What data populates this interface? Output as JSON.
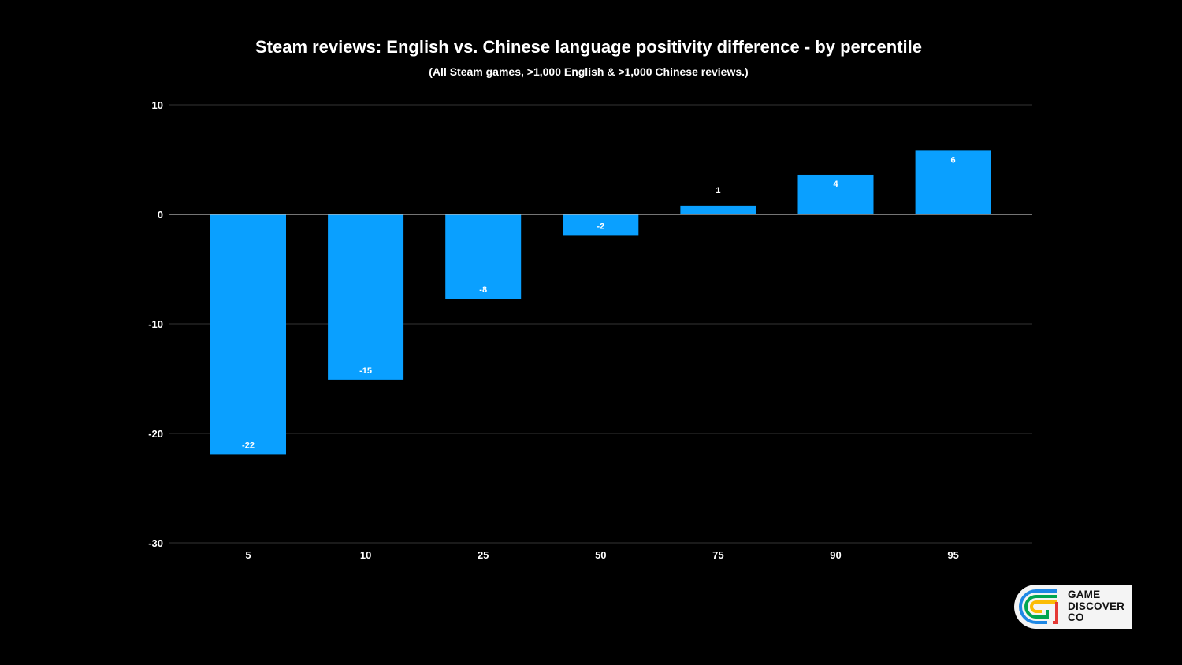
{
  "chart_data": {
    "type": "bar",
    "title": "Steam reviews: English vs. Chinese language positivity difference - by percentile",
    "subtitle": "(All Steam games, >1,000 English & >1,000 Chinese reviews.)",
    "xlabel": "",
    "ylabel": "",
    "categories": [
      "5",
      "10",
      "25",
      "50",
      "75",
      "90",
      "95"
    ],
    "values": [
      -21.9,
      -15.1,
      -7.7,
      -1.9,
      0.8,
      3.6,
      5.8
    ],
    "data_labels": [
      "-22",
      "-15",
      "-8",
      "-2",
      "1",
      "4",
      "6"
    ],
    "ylim": [
      -30,
      10
    ],
    "yticks": [
      10,
      0,
      -10,
      -20,
      -30
    ],
    "grid": true,
    "legend": "none",
    "bar_color": "#0aa0ff"
  },
  "logo": {
    "lines": [
      "GAME",
      "DISCOVER",
      "CO"
    ],
    "colors": [
      "#1e88e5",
      "#00a651",
      "#fbbc05",
      "#e53935"
    ]
  }
}
